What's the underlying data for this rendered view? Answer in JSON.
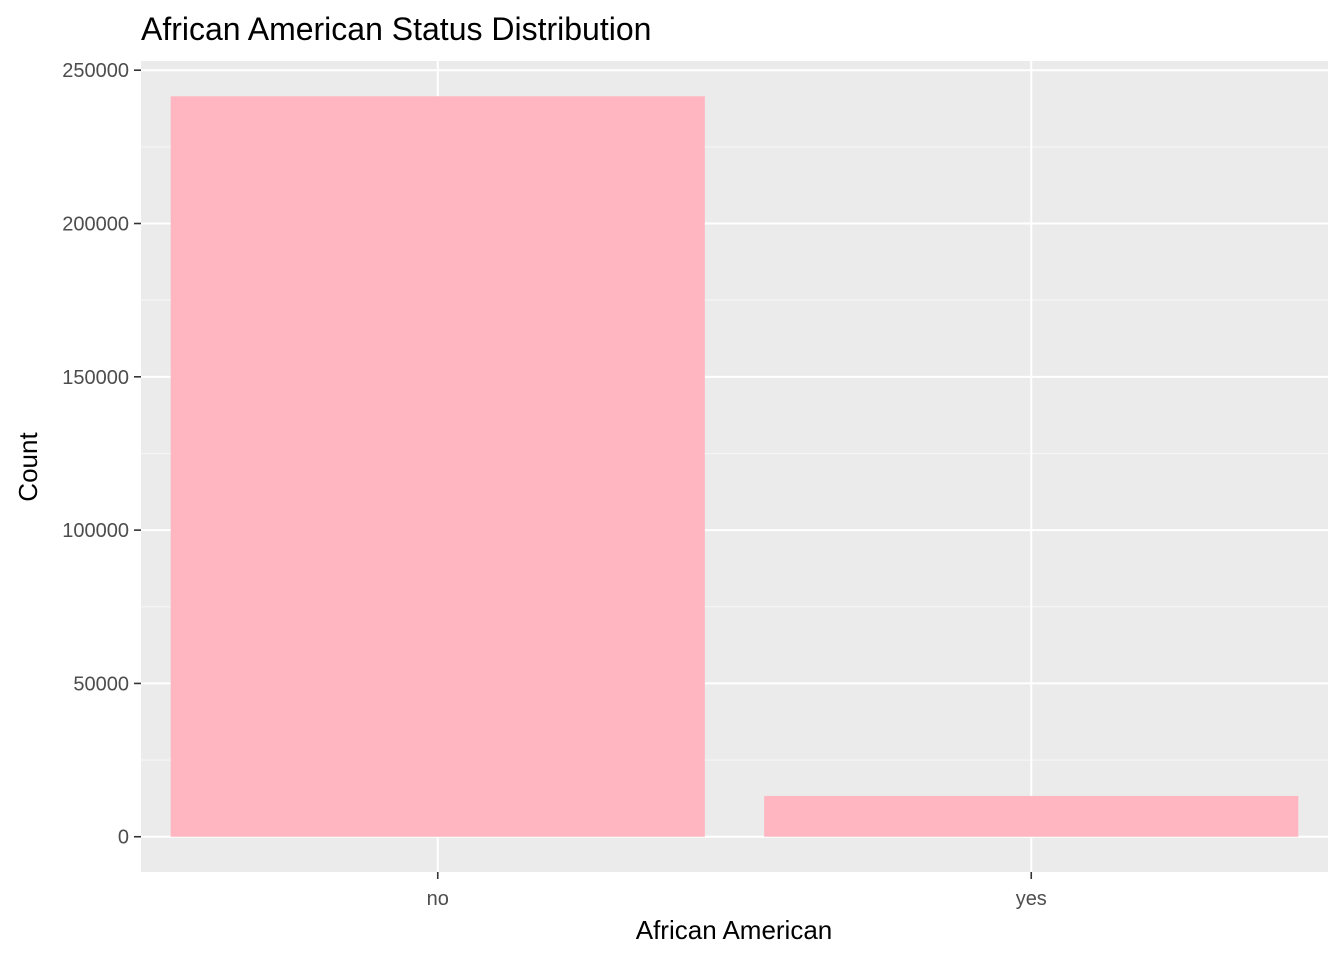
{
  "chart_data": {
    "type": "bar",
    "title": "African American Status Distribution",
    "xlabel": "African American",
    "ylabel": "Count",
    "categories": [
      "no",
      "yes"
    ],
    "values": [
      241500,
      13300
    ],
    "ylim": [
      -11500,
      253000
    ],
    "yticks": [
      0,
      50000,
      100000,
      150000,
      200000,
      250000
    ],
    "ytick_labels": [
      "0",
      "50000",
      "100000",
      "150000",
      "200000",
      "250000"
    ],
    "grid": true,
    "legend": "none",
    "colors": {
      "bar": "#FFB6C1",
      "panel": "#EBEBEB",
      "grid_major": "#FFFFFF",
      "grid_minor": "#F5F5F5",
      "tick_text": "#4D4D4D",
      "tick_mark": "#333333"
    }
  }
}
